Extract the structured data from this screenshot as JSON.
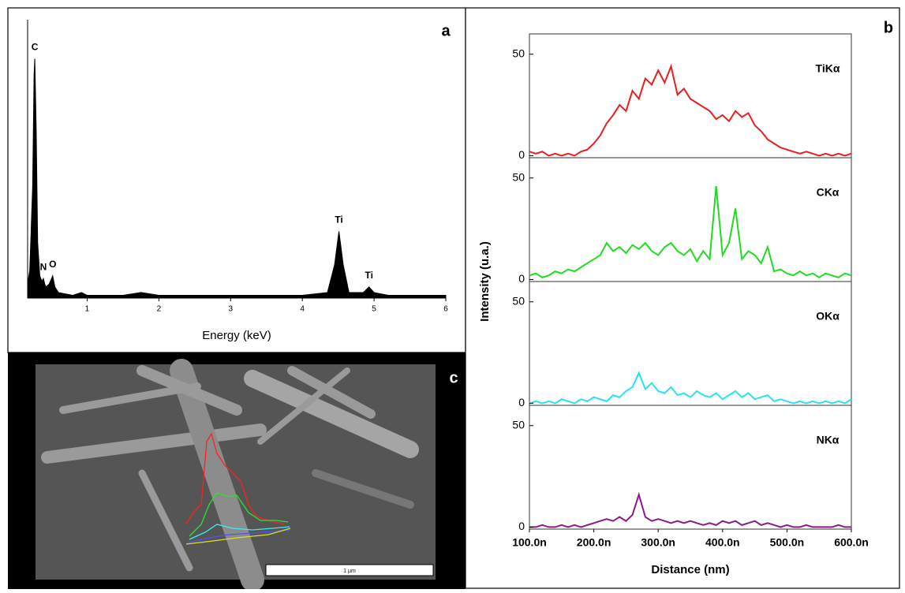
{
  "chart_data": [
    {
      "type": "area",
      "panel": "a",
      "xlabel": "Energy (keV)",
      "color": "#000000",
      "x": [
        0.17,
        0.2,
        0.24,
        0.26,
        0.27,
        0.29,
        0.31,
        0.34,
        0.37,
        0.39,
        0.42,
        0.47,
        0.52,
        0.55,
        0.6,
        0.8,
        0.92,
        1.0,
        1.5,
        1.75,
        2.0,
        3.0,
        4.0,
        4.35,
        4.45,
        4.51,
        4.57,
        4.65,
        4.85,
        4.93,
        5.0,
        5.2,
        6.0
      ],
      "values": [
        5,
        10,
        40,
        80,
        86,
        60,
        20,
        8,
        6,
        7,
        4,
        5,
        8,
        4,
        2,
        1,
        2,
        1,
        1,
        2,
        1,
        1,
        1,
        2,
        12,
        24,
        12,
        2,
        2,
        4,
        2,
        1,
        1
      ],
      "xlim": [
        0.17,
        6
      ],
      "xticks": [
        1,
        2,
        3,
        4,
        5,
        6
      ],
      "ylim": [
        0,
        100
      ],
      "annotations": [
        {
          "text": "C",
          "x": 0.27,
          "y": 86
        },
        {
          "text": "N",
          "x": 0.39,
          "y": 7
        },
        {
          "text": "O",
          "x": 0.52,
          "y": 8
        },
        {
          "text": "Ti",
          "x": 4.51,
          "y": 24
        },
        {
          "text": "Ti",
          "x": 4.93,
          "y": 4
        }
      ]
    },
    {
      "type": "line",
      "panel": "b",
      "ylabel": "Intensity (u.a.)",
      "label": "TiKα",
      "color": "#ee1c1c",
      "x": [
        100,
        110,
        120,
        130,
        140,
        150,
        160,
        170,
        180,
        190,
        200,
        210,
        220,
        230,
        240,
        250,
        260,
        270,
        280,
        290,
        300,
        310,
        320,
        330,
        340,
        350,
        360,
        370,
        380,
        390,
        400,
        410,
        420,
        430,
        440,
        450,
        460,
        470,
        480,
        490,
        500,
        510,
        520,
        530,
        540,
        550,
        560,
        570,
        580,
        590,
        600
      ],
      "values": [
        2,
        1,
        2,
        0,
        1,
        0,
        1,
        0,
        2,
        3,
        6,
        10,
        16,
        20,
        25,
        22,
        32,
        28,
        38,
        35,
        42,
        36,
        44,
        30,
        33,
        28,
        26,
        24,
        22,
        18,
        20,
        17,
        22,
        19,
        21,
        15,
        12,
        8,
        6,
        4,
        3,
        2,
        1,
        2,
        1,
        0,
        1,
        0,
        1,
        0,
        1
      ],
      "xlim": [
        100,
        600
      ],
      "ylim": [
        -1,
        60
      ],
      "yticks": [
        0,
        50
      ]
    },
    {
      "type": "line",
      "label": "CKα",
      "color": "#1fdc1f",
      "x": [
        100,
        110,
        120,
        130,
        140,
        150,
        160,
        170,
        180,
        190,
        200,
        210,
        220,
        230,
        240,
        250,
        260,
        270,
        280,
        290,
        300,
        310,
        320,
        330,
        340,
        350,
        360,
        370,
        380,
        390,
        400,
        410,
        420,
        430,
        440,
        450,
        460,
        470,
        480,
        490,
        500,
        510,
        520,
        530,
        540,
        550,
        560,
        570,
        580,
        590,
        600
      ],
      "values": [
        2,
        3,
        1,
        2,
        4,
        3,
        5,
        4,
        6,
        8,
        10,
        12,
        18,
        14,
        16,
        13,
        17,
        15,
        18,
        14,
        12,
        16,
        18,
        14,
        12,
        15,
        9,
        14,
        10,
        46,
        12,
        18,
        35,
        10,
        14,
        12,
        8,
        16,
        4,
        5,
        3,
        2,
        4,
        2,
        3,
        1,
        3,
        2,
        1,
        3,
        2
      ],
      "xlim": [
        100,
        600
      ],
      "ylim": [
        -1,
        60
      ],
      "yticks": [
        0,
        50
      ]
    },
    {
      "type": "line",
      "label": "OKα",
      "color": "#22e5f0",
      "x": [
        100,
        110,
        120,
        130,
        140,
        150,
        160,
        170,
        180,
        190,
        200,
        210,
        220,
        230,
        240,
        250,
        260,
        270,
        280,
        290,
        300,
        310,
        320,
        330,
        340,
        350,
        360,
        370,
        380,
        390,
        400,
        410,
        420,
        430,
        440,
        450,
        460,
        470,
        480,
        490,
        500,
        510,
        520,
        530,
        540,
        550,
        560,
        570,
        580,
        590,
        600
      ],
      "values": [
        0,
        1,
        0,
        1,
        0,
        2,
        1,
        0,
        2,
        1,
        3,
        2,
        1,
        4,
        3,
        6,
        8,
        15,
        7,
        10,
        6,
        5,
        8,
        4,
        5,
        3,
        6,
        4,
        3,
        5,
        2,
        4,
        6,
        3,
        5,
        2,
        3,
        4,
        1,
        2,
        1,
        0,
        1,
        0,
        1,
        0,
        1,
        0,
        1,
        0,
        2
      ],
      "xlim": [
        100,
        600
      ],
      "ylim": [
        -1,
        60
      ],
      "yticks": [
        0,
        50
      ]
    },
    {
      "type": "line",
      "label": "NKα",
      "color": "#8a1a8c",
      "xlabel": "Distance (nm)",
      "x": [
        100,
        110,
        120,
        130,
        140,
        150,
        160,
        170,
        180,
        190,
        200,
        210,
        220,
        230,
        240,
        250,
        260,
        270,
        280,
        290,
        300,
        310,
        320,
        330,
        340,
        350,
        360,
        370,
        380,
        390,
        400,
        410,
        420,
        430,
        440,
        450,
        460,
        470,
        480,
        490,
        500,
        510,
        520,
        530,
        540,
        550,
        560,
        570,
        580,
        590,
        600
      ],
      "values": [
        0,
        0,
        1,
        0,
        0,
        1,
        0,
        1,
        0,
        1,
        2,
        3,
        4,
        3,
        5,
        3,
        6,
        16,
        5,
        3,
        4,
        3,
        2,
        3,
        2,
        3,
        2,
        1,
        2,
        1,
        3,
        2,
        3,
        1,
        2,
        3,
        1,
        2,
        1,
        0,
        1,
        0,
        0,
        1,
        0,
        0,
        0,
        0,
        1,
        0,
        0
      ],
      "xlim": [
        100,
        600
      ],
      "ylim": [
        -1,
        60
      ],
      "yticks": [
        0,
        50
      ],
      "xticks": [
        {
          "value": 100,
          "label": "100.0n"
        },
        {
          "value": 200,
          "label": "200.0n"
        },
        {
          "value": 300,
          "label": "300.0n"
        },
        {
          "value": 400,
          "label": "400.0n"
        },
        {
          "value": 500,
          "label": "500.0n"
        },
        {
          "value": 600,
          "label": "600.0n"
        }
      ]
    }
  ],
  "image": {
    "panel": "c",
    "scale_bar": "1 µm"
  }
}
